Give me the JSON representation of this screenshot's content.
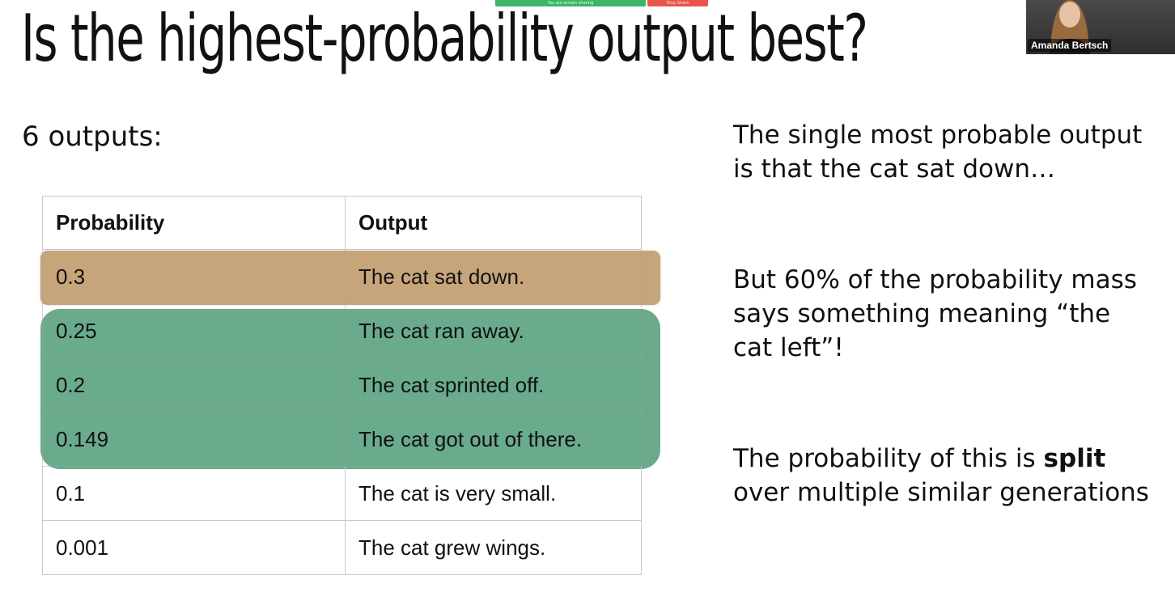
{
  "share_bar": {
    "sharing_text": "You are screen sharing",
    "stop_label": "Stop Share"
  },
  "slide": {
    "title": "Is the highest-probability output best?",
    "subtitle": "6 outputs:",
    "table": {
      "headers": [
        "Probability",
        "Output"
      ],
      "rows": [
        {
          "probability": "0.3",
          "output": "The cat sat down."
        },
        {
          "probability": "0.25",
          "output": "The cat ran away."
        },
        {
          "probability": "0.2",
          "output": "The cat sprinted off."
        },
        {
          "probability": "0.149",
          "output": "The cat got out of there."
        },
        {
          "probability": "0.1",
          "output": "The cat is very small."
        },
        {
          "probability": "0.001",
          "output": "The cat grew wings."
        }
      ]
    },
    "notes": {
      "note1": "The single most probable output is that the cat sat down…",
      "note2": "But 60% of the probability mass says something meaning “the cat left”!",
      "note3_before": "The probability of this is ",
      "note3_bold": "split",
      "note3_after": " over multiple similar generations"
    },
    "highlight_colors": {
      "top": "#c7a57b",
      "group": "#6aab8d"
    }
  },
  "video": {
    "participant_name": "Amanda Bertsch"
  }
}
